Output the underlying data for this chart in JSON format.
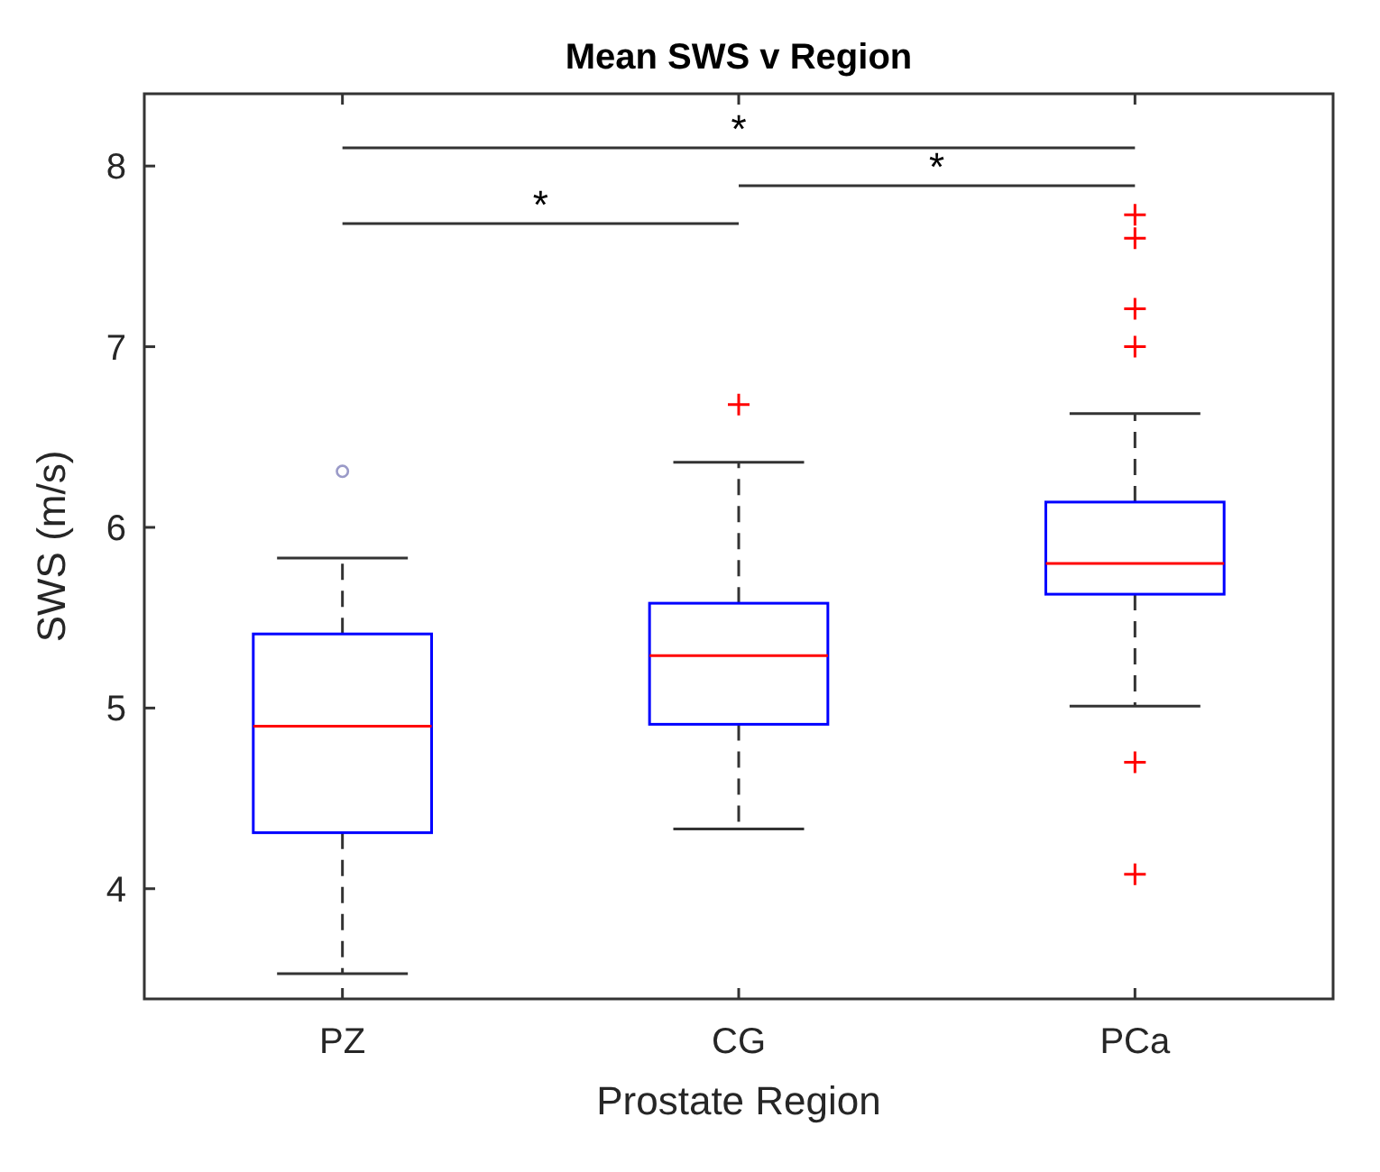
{
  "chart_data": {
    "type": "box",
    "title": "Mean SWS v Region",
    "xlabel": "Prostate Region",
    "ylabel": "SWS (m/s)",
    "categories": [
      "PZ",
      "CG",
      "PCa"
    ],
    "ylim": [
      3.39,
      8.4
    ],
    "yticks": [
      4,
      5,
      6,
      7,
      8
    ],
    "grid": false,
    "series": [
      {
        "color": "#0000ff",
        "boxes": [
          {
            "low": 3.53,
            "q1": 4.31,
            "median": 4.9,
            "q3": 5.41,
            "high": 5.83
          },
          {
            "low": 4.33,
            "q1": 4.91,
            "median": 5.29,
            "q3": 5.58,
            "high": 6.36,
            "outliers": [
              6.68
            ]
          },
          {
            "low": 5.01,
            "q1": 5.63,
            "median": 5.8,
            "q3": 6.14,
            "high": 6.63,
            "outliers": [
              7.73,
              7.6,
              7.21,
              7.0,
              4.7,
              4.08
            ]
          }
        ]
      },
      {
        "type": "scatter",
        "color": "#9a9ac8",
        "marker": "circle",
        "x": [
          "PZ"
        ],
        "values": [
          6.31
        ]
      }
    ],
    "annotations": [
      "*",
      "*",
      "*"
    ]
  }
}
